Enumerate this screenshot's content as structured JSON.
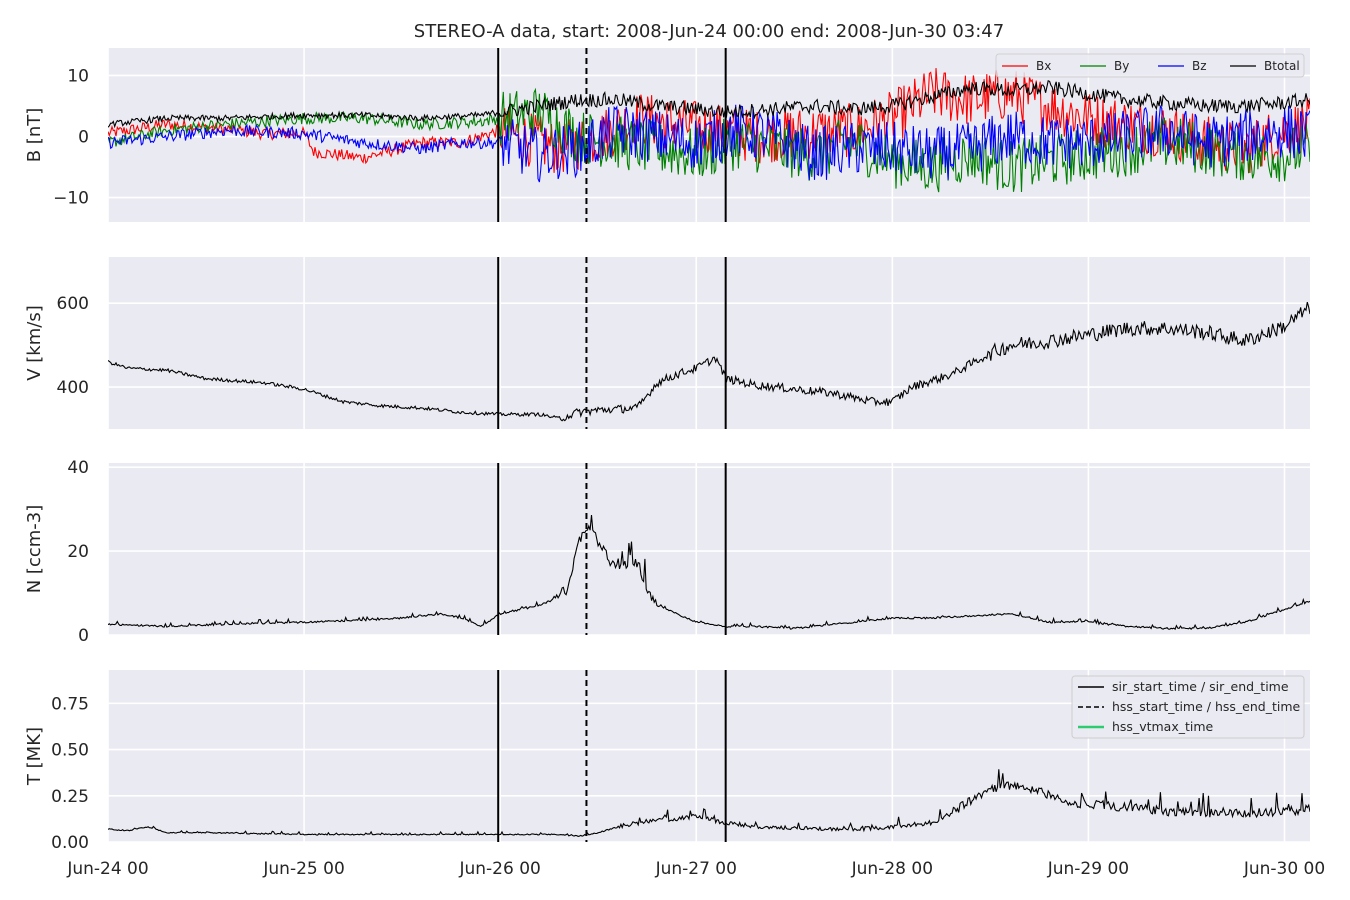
{
  "chart_data": {
    "type": "line",
    "title": "STEREO-A data, start: 2008-Jun-24 00:00  end: 2008-Jun-30 03:47",
    "x_unit": "days since 2008-Jun-24 00:00",
    "x_ticks": [
      {
        "x": 0,
        "label": "Jun-24 00"
      },
      {
        "x": 1,
        "label": "Jun-25 00"
      },
      {
        "x": 2,
        "label": "Jun-26 00"
      },
      {
        "x": 3,
        "label": "Jun-27 00"
      },
      {
        "x": 4,
        "label": "Jun-28 00"
      },
      {
        "x": 5,
        "label": "Jun-29 00"
      },
      {
        "x": 6,
        "label": "Jun-30 00"
      }
    ],
    "xlim": [
      0,
      6.13
    ],
    "events": {
      "sir_start": 1.99,
      "hss_start": 2.44,
      "sir_end": 3.15
    },
    "grid": true,
    "panels": [
      {
        "id": "B",
        "ylabel": "B [nT]",
        "ylim": [
          -14,
          14.5
        ],
        "yticks": [
          {
            "v": 10,
            "label": "10"
          },
          {
            "v": 0,
            "label": "0"
          },
          {
            "v": -10,
            "label": "−10"
          }
        ],
        "legend": "top-right",
        "series": [
          {
            "name": "Bx",
            "color": "#ff0000",
            "x": [
              0,
              0.3,
              0.5,
              0.8,
              1.0,
              1.05,
              1.3,
              1.6,
              1.8,
              2.0,
              2.1,
              2.3,
              2.5,
              2.7,
              2.9,
              3.1,
              3.3,
              3.5,
              3.8,
              4.0,
              4.2,
              4.4,
              4.6,
              4.8,
              5.0,
              5.2,
              5.4,
              5.6,
              5.8,
              6.0,
              6.13
            ],
            "values": [
              0.5,
              2,
              1.5,
              0.5,
              0.5,
              -2.5,
              -3.5,
              -1,
              -1,
              1,
              0,
              -2,
              0,
              3,
              2,
              1,
              0,
              0.5,
              1,
              3,
              7,
              6,
              7,
              5,
              3,
              2,
              1,
              -1,
              -2,
              1,
              2
            ]
          },
          {
            "name": "By",
            "color": "#008000",
            "x": [
              0,
              0.3,
              0.6,
              1.0,
              1.3,
              1.6,
              1.9,
              2.0,
              2.2,
              2.4,
              2.6,
              2.8,
              3.0,
              3.2,
              3.4,
              3.6,
              3.8,
              4.0,
              4.2,
              4.4,
              4.6,
              4.8,
              5.0,
              5.2,
              5.4,
              5.6,
              5.8,
              6.0,
              6.13
            ],
            "values": [
              -1,
              1,
              2,
              3,
              3,
              2,
              2.5,
              3,
              4,
              0,
              -1,
              -2,
              -3,
              -1,
              -2,
              -3,
              -1,
              -4,
              -5,
              -3,
              -5,
              -4,
              -3,
              -2,
              -1,
              -2,
              -3,
              -3,
              -2
            ]
          },
          {
            "name": "Bz",
            "color": "#0000ff",
            "x": [
              0,
              0.3,
              0.6,
              1.0,
              1.3,
              1.6,
              1.8,
              2.0,
              2.2,
              2.4,
              2.6,
              2.8,
              3.0,
              3.2,
              3.4,
              3.6,
              3.8,
              4.0,
              4.2,
              4.4,
              4.6,
              4.8,
              5.0,
              5.2,
              5.4,
              5.6,
              5.8,
              6.0,
              6.13
            ],
            "values": [
              -1,
              0,
              1,
              0.5,
              -1,
              -2,
              -1,
              -1,
              -3,
              -2,
              1,
              0,
              -1,
              1,
              0,
              -3,
              -2,
              -2,
              -3,
              -2,
              0,
              -1,
              -1,
              0,
              1,
              -1,
              0,
              1,
              0
            ]
          },
          {
            "name": "Btotal",
            "color": "#000000",
            "x": [
              0,
              0.3,
              0.6,
              1.0,
              1.3,
              1.6,
              1.9,
              2.0,
              2.2,
              2.4,
              2.6,
              2.8,
              3.0,
              3.15,
              3.4,
              3.6,
              3.8,
              4.0,
              4.2,
              4.4,
              4.6,
              4.8,
              5.0,
              5.2,
              5.4,
              5.6,
              5.8,
              6.0,
              6.13
            ],
            "values": [
              2,
              3,
              3,
              3.5,
              3.5,
              3,
              3.5,
              4,
              5,
              6,
              6,
              5,
              4.5,
              4,
              4.5,
              5,
              4.5,
              5,
              6.5,
              8,
              7.5,
              8,
              7,
              6,
              5.5,
              5,
              5,
              5.5,
              6
            ]
          }
        ]
      },
      {
        "id": "V",
        "ylabel": "V [km/s]",
        "ylim": [
          300,
          710
        ],
        "yticks": [
          {
            "v": 600,
            "label": "600"
          },
          {
            "v": 400,
            "label": "400"
          }
        ],
        "series": [
          {
            "name": "",
            "color": "#000000",
            "x": [
              0,
              0.1,
              0.3,
              0.5,
              0.8,
              1.0,
              1.2,
              1.4,
              1.6,
              1.8,
              2.0,
              2.2,
              2.3,
              2.4,
              2.5,
              2.7,
              2.8,
              2.9,
              3.0,
              3.1,
              3.15,
              3.3,
              3.5,
              3.7,
              3.9,
              4.0,
              4.1,
              4.3,
              4.5,
              4.6,
              4.8,
              5.0,
              5.2,
              5.4,
              5.6,
              5.8,
              6.0,
              6.13
            ],
            "values": [
              460,
              445,
              440,
              420,
              410,
              395,
              365,
              355,
              350,
              340,
              335,
              335,
              325,
              340,
              345,
              350,
              410,
              430,
              445,
              470,
              420,
              405,
              395,
              385,
              365,
              365,
              400,
              430,
              480,
              500,
              510,
              525,
              540,
              540,
              530,
              510,
              545,
              590
            ]
          }
        ]
      },
      {
        "id": "N",
        "ylabel": "N [ccm-3]",
        "ylim": [
          0,
          41
        ],
        "yticks": [
          {
            "v": 40,
            "label": "40"
          },
          {
            "v": 20,
            "label": "20"
          },
          {
            "v": 0,
            "label": "0"
          }
        ],
        "series": [
          {
            "name": "",
            "color": "#000000",
            "x": [
              0,
              0.3,
              0.6,
              1.0,
              1.3,
              1.5,
              1.7,
              1.8,
              1.9,
              2.0,
              2.1,
              2.2,
              2.3,
              2.35,
              2.4,
              2.45,
              2.5,
              2.55,
              2.6,
              2.7,
              2.75,
              2.8,
              2.9,
              3.0,
              3.15,
              3.3,
              3.5,
              3.7,
              3.9,
              4.0,
              4.2,
              4.4,
              4.6,
              4.8,
              5.0,
              5.2,
              5.4,
              5.6,
              5.8,
              6.0,
              6.13
            ],
            "values": [
              2.5,
              2,
              2.5,
              3,
              3.5,
              4,
              5,
              4,
              2,
              5,
              6,
              7,
              9,
              11,
              22,
              25,
              22,
              18,
              16,
              17,
              10,
              7,
              5,
              3,
              2,
              2,
              1.5,
              2.5,
              3.5,
              4,
              4,
              4.5,
              5,
              3,
              3,
              2,
              1.5,
              1.5,
              3,
              6,
              8
            ]
          }
        ]
      },
      {
        "id": "T",
        "ylabel": "T [MK]",
        "ylim": [
          0,
          0.93
        ],
        "yticks": [
          {
            "v": 0.75,
            "label": "0.75"
          },
          {
            "v": 0.5,
            "label": "0.50"
          },
          {
            "v": 0.25,
            "label": "0.25"
          },
          {
            "v": 0,
            "label": "0.00"
          }
        ],
        "legend": "top-right",
        "legend_entries": [
          {
            "label": "sir_start_time / sir_end_time",
            "style": "solid",
            "color": "#000000"
          },
          {
            "label": "hss_start_time / hss_end_time",
            "style": "dashed",
            "color": "#000000"
          },
          {
            "label": "hss_vtmax_time",
            "style": "solid",
            "color": "#2ecc71"
          }
        ],
        "series": [
          {
            "name": "",
            "color": "#000000",
            "x": [
              0,
              0.1,
              0.2,
              0.3,
              0.5,
              1.0,
              1.5,
              2.0,
              2.3,
              2.4,
              2.5,
              2.6,
              2.7,
              2.8,
              2.9,
              3.0,
              3.15,
              3.3,
              3.5,
              3.7,
              3.9,
              4.0,
              4.2,
              4.3,
              4.4,
              4.5,
              4.6,
              4.7,
              4.8,
              4.9,
              5.0,
              5.2,
              5.4,
              5.6,
              5.8,
              6.0,
              6.13
            ],
            "values": [
              0.07,
              0.06,
              0.08,
              0.05,
              0.05,
              0.04,
              0.04,
              0.04,
              0.04,
              0.03,
              0.05,
              0.08,
              0.1,
              0.12,
              0.12,
              0.14,
              0.1,
              0.08,
              0.07,
              0.07,
              0.07,
              0.08,
              0.1,
              0.15,
              0.22,
              0.28,
              0.3,
              0.28,
              0.25,
              0.2,
              0.2,
              0.18,
              0.16,
              0.15,
              0.15,
              0.16,
              0.17
            ]
          }
        ]
      }
    ]
  }
}
